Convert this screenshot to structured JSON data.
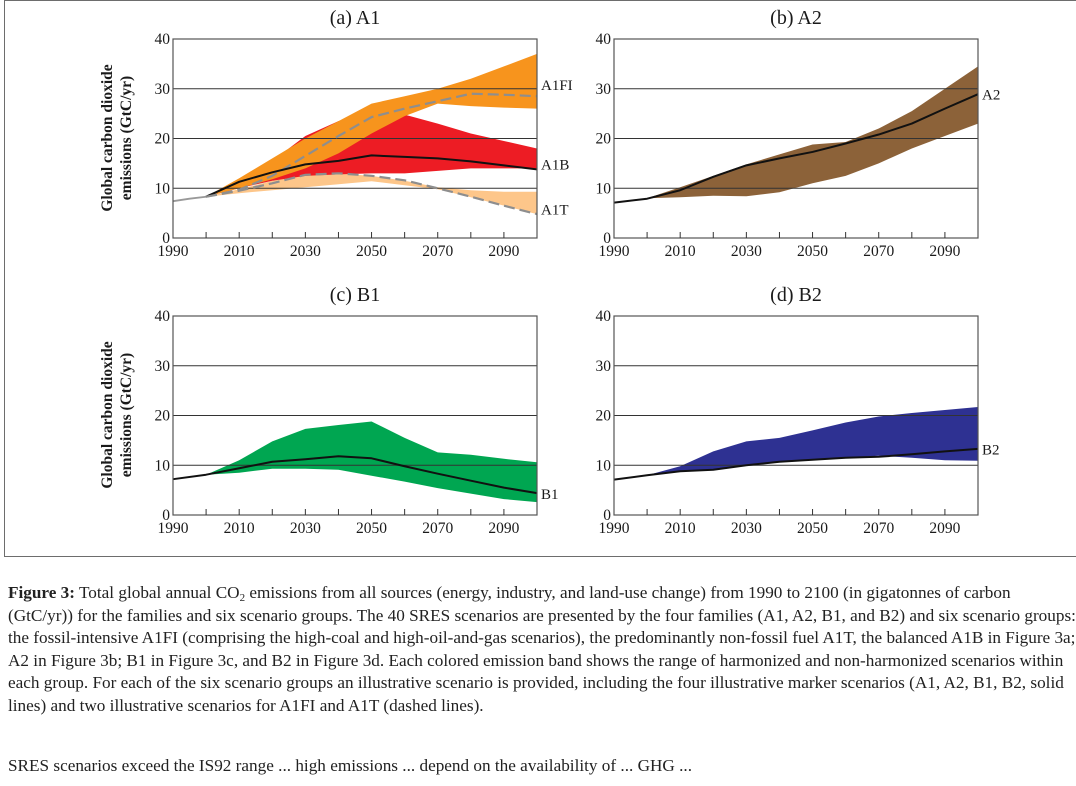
{
  "figure": {
    "ylabel_line1": "Global carbon dioxide",
    "ylabel_line2": "emissions (GtC/yr)"
  },
  "caption": {
    "label": "Figure 3:",
    "text_before_sub": " Total global annual CO",
    "sub": "2",
    "text_after_sub": " emissions from all sources (energy, industry, and land-use change) from 1990 to 2100 (in gigatonnes of carbon (GtC/yr)) for the families and six scenario groups. The 40 SRES scenarios are presented by the four families (A1, A2, B1, and B2) and six scenario groups: the fossil-intensive A1FI (comprising the high-coal and high-oil-and-gas scenarios), the predominantly non-fossil fuel A1T, the balanced A1B in Figure 3a; A2 in Figure 3b; B1 in Figure 3c, and B2 in Figure 3d. Each colored emission band shows the range of harmonized and non-harmonized scenarios within each group. For each of the six scenario groups an illustrative scenario is provided, including the four illustrative marker scenarios (A1, A2, B1, B2, solid lines) and two illustrative scenarios for A1FI and A1T (dashed lines).",
    "next_paragraph_partial": "SRES scenarios exceed the IS92 range ... high emissions ... depend on the availability of ... GHG ..."
  },
  "chart_data": [
    {
      "id": "a",
      "type": "area",
      "title": "(a) A1",
      "xlabel": "",
      "ylabel": "Global carbon dioxide emissions (GtC/yr)",
      "xlim": [
        1990,
        2100
      ],
      "ylim": [
        0,
        40
      ],
      "xticks": [
        1990,
        2010,
        2030,
        2050,
        2070,
        2090
      ],
      "xminor": [
        2000,
        2020,
        2040,
        2060,
        2080
      ],
      "yticks": [
        0,
        10,
        20,
        30,
        40
      ],
      "grid": [
        10,
        20,
        30
      ],
      "bands": [
        {
          "name": "A1T range",
          "color": "#FDC68A",
          "x": [
            2000,
            2010,
            2020,
            2030,
            2040,
            2050,
            2060,
            2070,
            2080,
            2090,
            2100
          ],
          "upper": [
            8.3,
            9.8,
            11.5,
            12.8,
            13.0,
            12.5,
            11.5,
            10.2,
            9.6,
            9.3,
            9.3
          ],
          "lower": [
            8.3,
            9.0,
            9.6,
            10.2,
            10.8,
            11.4,
            10.6,
            9.8,
            8.2,
            6.5,
            4.8
          ]
        },
        {
          "name": "A1B range",
          "color": "#ED1C24",
          "x": [
            2000,
            2010,
            2020,
            2030,
            2040,
            2050,
            2060,
            2070,
            2080,
            2090,
            2100
          ],
          "upper": [
            8.3,
            11.0,
            15.5,
            20.5,
            23.5,
            25.0,
            24.8,
            23.0,
            21.0,
            19.5,
            18.0
          ],
          "lower": [
            8.3,
            10.0,
            11.5,
            12.5,
            12.8,
            13.0,
            13.0,
            13.5,
            14.0,
            14.0,
            14.0
          ]
        },
        {
          "name": "A1FI range",
          "color": "#F7941D",
          "x": [
            2000,
            2010,
            2020,
            2030,
            2040,
            2050,
            2060,
            2070,
            2080,
            2090,
            2100
          ],
          "upper": [
            8.3,
            12.0,
            16.0,
            20.0,
            23.5,
            27.0,
            28.5,
            30.0,
            32.0,
            34.5,
            37.0
          ],
          "lower": [
            8.3,
            10.0,
            11.8,
            14.0,
            17.0,
            21.0,
            24.5,
            27.0,
            26.5,
            26.2,
            26.0
          ]
        }
      ],
      "series": [
        {
          "name": "history",
          "style": "gray",
          "x": [
            1990,
            1995,
            2000
          ],
          "y": [
            7.4,
            7.9,
            8.3
          ]
        },
        {
          "name": "A1FI",
          "style": "dashed",
          "label": "A1FI",
          "label_y": 30.8,
          "x": [
            2000,
            2010,
            2020,
            2030,
            2040,
            2050,
            2060,
            2070,
            2080,
            2090,
            2100
          ],
          "y": [
            8.3,
            9.7,
            12.5,
            16.5,
            20.5,
            24.3,
            26.0,
            27.5,
            29.0,
            28.8,
            28.5
          ]
        },
        {
          "name": "A1B",
          "style": "solid",
          "label": "A1B",
          "label_y": 14.8,
          "x": [
            2000,
            2010,
            2020,
            2030,
            2040,
            2050,
            2060,
            2070,
            2080,
            2090,
            2100
          ],
          "y": [
            8.3,
            11.3,
            13.2,
            14.8,
            15.5,
            16.6,
            16.3,
            16.0,
            15.4,
            14.6,
            13.8
          ]
        },
        {
          "name": "A1T",
          "style": "dashed",
          "label": "A1T",
          "label_y": 5.7,
          "x": [
            2000,
            2010,
            2020,
            2030,
            2040,
            2050,
            2060,
            2070,
            2080,
            2090,
            2100
          ],
          "y": [
            8.3,
            9.5,
            11.0,
            12.7,
            13.0,
            12.5,
            11.6,
            10.0,
            8.3,
            6.5,
            4.8
          ]
        }
      ]
    },
    {
      "id": "b",
      "type": "area",
      "title": "(b) A2",
      "xlabel": "",
      "ylabel": "",
      "xlim": [
        1990,
        2100
      ],
      "ylim": [
        0,
        40
      ],
      "xticks": [
        1990,
        2010,
        2030,
        2050,
        2070,
        2090
      ],
      "xminor": [
        2000,
        2020,
        2040,
        2060,
        2080
      ],
      "yticks": [
        0,
        10,
        20,
        30,
        40
      ],
      "grid": [
        10,
        20,
        30
      ],
      "bands": [
        {
          "name": "A2 range",
          "color": "#8C6239",
          "x": [
            2000,
            2010,
            2020,
            2030,
            2040,
            2050,
            2060,
            2070,
            2080,
            2090,
            2100
          ],
          "upper": [
            8.0,
            10.2,
            12.5,
            14.8,
            16.8,
            18.8,
            19.3,
            22.0,
            25.5,
            30.0,
            34.5
          ],
          "lower": [
            8.0,
            8.2,
            8.5,
            8.4,
            9.2,
            11.0,
            12.5,
            15.0,
            18.0,
            20.5,
            23.0
          ]
        }
      ],
      "series": [
        {
          "name": "A2",
          "style": "solid",
          "label": "A2",
          "label_y": 28.8,
          "x": [
            1990,
            2000,
            2010,
            2020,
            2030,
            2040,
            2050,
            2060,
            2070,
            2080,
            2090,
            2100
          ],
          "y": [
            7.1,
            7.9,
            9.6,
            12.3,
            14.6,
            16.0,
            17.3,
            19.0,
            20.8,
            23.0,
            26.0,
            28.9
          ]
        }
      ]
    },
    {
      "id": "c",
      "type": "area",
      "title": "(c) B1",
      "xlabel": "",
      "ylabel": "Global carbon dioxide emissions (GtC/yr)",
      "xlim": [
        1990,
        2100
      ],
      "ylim": [
        0,
        40
      ],
      "xticks": [
        1990,
        2010,
        2030,
        2050,
        2070,
        2090
      ],
      "xminor": [
        2000,
        2020,
        2040,
        2060,
        2080
      ],
      "yticks": [
        0,
        10,
        20,
        30,
        40
      ],
      "grid": [
        10,
        20,
        30
      ],
      "bands": [
        {
          "name": "B1 range",
          "color": "#00A651",
          "x": [
            2000,
            2010,
            2020,
            2030,
            2040,
            2050,
            2060,
            2070,
            2080,
            2090,
            2100
          ],
          "upper": [
            8.1,
            11.0,
            14.8,
            17.3,
            18.1,
            18.8,
            15.5,
            12.6,
            12.1,
            11.3,
            10.6
          ],
          "lower": [
            8.1,
            8.5,
            9.3,
            9.3,
            9.1,
            7.9,
            6.7,
            5.4,
            4.3,
            3.2,
            2.6
          ]
        }
      ],
      "series": [
        {
          "name": "B1",
          "style": "solid",
          "label": "B1",
          "label_y": 4.2,
          "x": [
            1990,
            2000,
            2010,
            2020,
            2030,
            2040,
            2050,
            2060,
            2070,
            2080,
            2090,
            2100
          ],
          "y": [
            7.2,
            8.1,
            9.4,
            10.7,
            11.2,
            11.8,
            11.4,
            9.8,
            8.3,
            6.9,
            5.5,
            4.4
          ]
        }
      ]
    },
    {
      "id": "d",
      "type": "area",
      "title": "(d) B2",
      "xlabel": "",
      "ylabel": "",
      "xlim": [
        1990,
        2100
      ],
      "ylim": [
        0,
        40
      ],
      "xticks": [
        1990,
        2010,
        2030,
        2050,
        2070,
        2090
      ],
      "xminor": [
        2000,
        2020,
        2040,
        2060,
        2080
      ],
      "yticks": [
        0,
        10,
        20,
        30,
        40
      ],
      "grid": [
        10,
        20,
        30
      ],
      "bands": [
        {
          "name": "B2 range",
          "color": "#2E3192",
          "x": [
            2000,
            2010,
            2020,
            2030,
            2040,
            2050,
            2060,
            2070,
            2080,
            2090,
            2100
          ],
          "upper": [
            8.0,
            9.8,
            12.8,
            14.8,
            15.5,
            17.0,
            18.6,
            19.8,
            20.5,
            21.1,
            21.7
          ],
          "lower": [
            8.0,
            8.8,
            9.0,
            9.9,
            10.6,
            11.0,
            11.5,
            11.9,
            11.5,
            11.0,
            10.9
          ]
        }
      ],
      "series": [
        {
          "name": "B2",
          "style": "solid",
          "label": "B2",
          "label_y": 13.2,
          "x": [
            1990,
            2000,
            2010,
            2020,
            2030,
            2040,
            2050,
            2060,
            2070,
            2080,
            2090,
            2100
          ],
          "y": [
            7.1,
            8.0,
            8.8,
            9.1,
            10.0,
            10.7,
            11.1,
            11.5,
            11.7,
            12.2,
            12.8,
            13.3
          ]
        }
      ]
    }
  ]
}
